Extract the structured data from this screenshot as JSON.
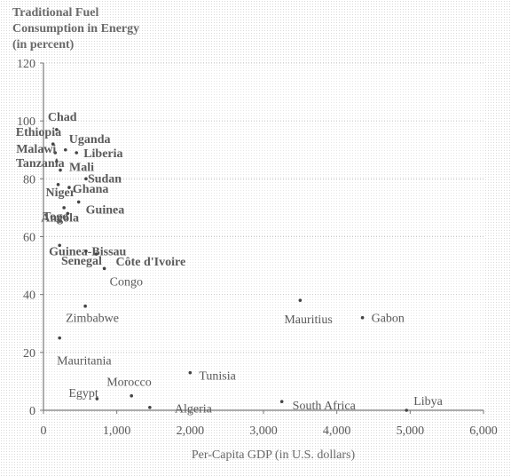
{
  "chart_data": {
    "type": "scatter",
    "ylabel_lines": [
      "Traditional Fuel",
      "Consumption in Energy",
      "(in percent)"
    ],
    "xlabel": "Per-Capita GDP (in U.S. dollars)",
    "xlim": [
      0,
      6000
    ],
    "ylim": [
      0,
      120
    ],
    "x_ticks": [
      0,
      1000,
      2000,
      3000,
      4000,
      5000,
      6000
    ],
    "x_tick_labels": [
      "0",
      "1,000",
      "2,000",
      "3,000",
      "4,000",
      "5,000",
      "6,000"
    ],
    "y_ticks": [
      0,
      20,
      40,
      60,
      80,
      100,
      120
    ],
    "y_tick_labels": [
      "0",
      "20",
      "40",
      "60",
      "80",
      "100",
      "120"
    ],
    "grid": true,
    "points": [
      {
        "label": "Chad",
        "x": 180,
        "y": 97
      },
      {
        "label": "Ethiopia",
        "x": 130,
        "y": 92
      },
      {
        "label": "Uganda",
        "x": 300,
        "y": 90
      },
      {
        "label": "Malawi",
        "x": 160,
        "y": 89
      },
      {
        "label": "Liberia",
        "x": 450,
        "y": 89
      },
      {
        "label": "Tanzania",
        "x": 180,
        "y": 86
      },
      {
        "label": "Mali",
        "x": 230,
        "y": 83
      },
      {
        "label": "Sudan",
        "x": 580,
        "y": 80
      },
      {
        "label": "Niger",
        "x": 200,
        "y": 78
      },
      {
        "label": "Ghana",
        "x": 350,
        "y": 77
      },
      {
        "label": "Togo",
        "x": 280,
        "y": 70
      },
      {
        "label": "Guinea",
        "x": 480,
        "y": 72
      },
      {
        "label": "Angola",
        "x": 330,
        "y": 68
      },
      {
        "label": "Guinea-Bissau",
        "x": 220,
        "y": 57
      },
      {
        "label": "Côte d'Ivoire",
        "x": 720,
        "y": 54
      },
      {
        "label": "Senegal",
        "x": 580,
        "y": 55
      },
      {
        "label": "Congo",
        "x": 830,
        "y": 49
      },
      {
        "label": "Zimbabwe",
        "x": 570,
        "y": 36
      },
      {
        "label": "Mauritius",
        "x": 3500,
        "y": 38
      },
      {
        "label": "Gabon",
        "x": 4350,
        "y": 32
      },
      {
        "label": "Tunisia",
        "x": 2000,
        "y": 13
      },
      {
        "label": "Morocco",
        "x": 1200,
        "y": 5
      },
      {
        "label": "Egypt",
        "x": 730,
        "y": 4
      },
      {
        "label": "Algeria",
        "x": 1450,
        "y": 1
      },
      {
        "label": "South Africa",
        "x": 3250,
        "y": 3
      },
      {
        "label": "Libya",
        "x": 4950,
        "y": 0
      },
      {
        "label": "Mauritania",
        "x": 220,
        "y": 25
      }
    ]
  }
}
